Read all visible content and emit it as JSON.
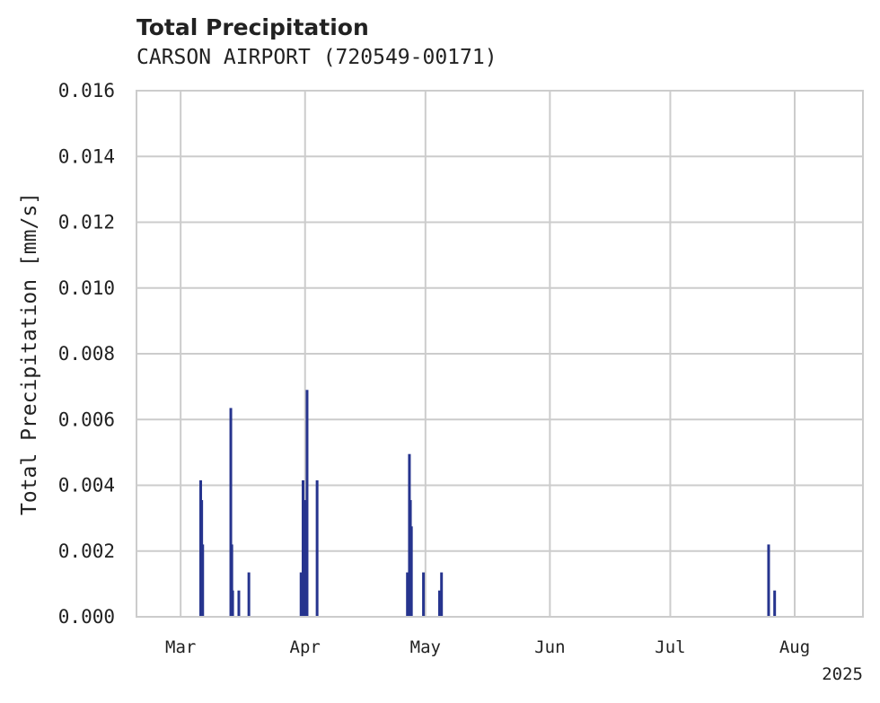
{
  "chart_data": {
    "type": "bar",
    "title": "Total Precipitation",
    "subtitle": "CARSON AIRPORT (720549-00171)",
    "ylabel": "Total Precipitation [mm/s]",
    "xlabel": "",
    "ylim": [
      0,
      0.016
    ],
    "y_ticks": [
      "0.000",
      "0.002",
      "0.004",
      "0.006",
      "0.008",
      "0.010",
      "0.012",
      "0.014",
      "0.016"
    ],
    "x_ticks": [
      {
        "date": "2025-03-01",
        "label": "Mar"
      },
      {
        "date": "2025-04-01",
        "label": "Apr"
      },
      {
        "date": "2025-05-01",
        "label": "May"
      },
      {
        "date": "2025-06-01",
        "label": "Jun"
      },
      {
        "date": "2025-07-01",
        "label": "Jul"
      },
      {
        "date": "2025-08-01",
        "label": "Aug"
      }
    ],
    "xlim": [
      "2025-02-18",
      "2025-08-18"
    ],
    "year_label": "2025",
    "grid": true,
    "color": "#26348e",
    "points": [
      {
        "date": "2025-03-06T00:00",
        "value": 0.00415
      },
      {
        "date": "2025-03-06T06:00",
        "value": 0.00355
      },
      {
        "date": "2025-03-06T12:00",
        "value": 0.0022
      },
      {
        "date": "2025-03-13T12:00",
        "value": 0.00635
      },
      {
        "date": "2025-03-13T18:00",
        "value": 0.0022
      },
      {
        "date": "2025-03-13T23:00",
        "value": 0.0008
      },
      {
        "date": "2025-03-15T12:00",
        "value": 0.0008
      },
      {
        "date": "2025-03-18T00:00",
        "value": 0.00135
      },
      {
        "date": "2025-03-31T00:00",
        "value": 0.00135
      },
      {
        "date": "2025-03-31T12:00",
        "value": 0.00415
      },
      {
        "date": "2025-04-01T00:00",
        "value": 0.00355
      },
      {
        "date": "2025-04-01T12:00",
        "value": 0.0069
      },
      {
        "date": "2025-04-04T00:00",
        "value": 0.00415
      },
      {
        "date": "2025-04-26T12:00",
        "value": 0.00135
      },
      {
        "date": "2025-04-27T00:00",
        "value": 0.00495
      },
      {
        "date": "2025-04-27T06:00",
        "value": 0.00355
      },
      {
        "date": "2025-04-27T12:00",
        "value": 0.00275
      },
      {
        "date": "2025-04-30T12:00",
        "value": 0.00135
      },
      {
        "date": "2025-05-04T12:00",
        "value": 0.0008
      },
      {
        "date": "2025-05-05T00:00",
        "value": 0.00135
      },
      {
        "date": "2025-07-25T12:00",
        "value": 0.0022
      },
      {
        "date": "2025-07-27T00:00",
        "value": 0.0008
      }
    ]
  }
}
